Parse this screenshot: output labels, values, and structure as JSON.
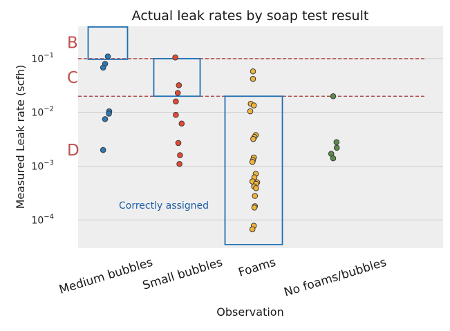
{
  "chart_data": {
    "type": "scatter",
    "title": "Actual leak rates by soap test result",
    "xlabel": "Observation",
    "ylabel": "Measured Leak rate (scfh)",
    "y_scale": "log",
    "ylim": [
      3e-05,
      0.4
    ],
    "grid": true,
    "categories": [
      "Medium bubbles",
      "Small bubbles",
      "Foams",
      "No foams/bubbles"
    ],
    "y_ticks": [
      {
        "value": 0.0001,
        "base": "10",
        "exp": "−4"
      },
      {
        "value": 0.001,
        "base": "10",
        "exp": "−3"
      },
      {
        "value": 0.01,
        "base": "10",
        "exp": "−2"
      },
      {
        "value": 0.1,
        "base": "10",
        "exp": "−1"
      }
    ],
    "thresholds": [
      {
        "value": 0.1,
        "color": "#a83232"
      },
      {
        "value": 0.02,
        "color": "#a83232"
      }
    ],
    "zone_labels": [
      {
        "text": "B",
        "value": 0.2
      },
      {
        "text": "C",
        "value": 0.045
      },
      {
        "text": "D",
        "value": 0.002
      }
    ],
    "zone_label_color": "#c0504d",
    "boxes": [
      {
        "category": "Medium bubbles",
        "y_low": 0.1,
        "y_high": 0.4
      },
      {
        "category": "Small bubbles",
        "y_low": 0.02,
        "y_high": 0.1
      },
      {
        "category": "Foams",
        "y_low": 3e-05,
        "y_high": 0.02
      }
    ],
    "box_color": "#1f6fb4",
    "annotation": {
      "text": "Correctly assigned",
      "color": "#1f5fa8"
    },
    "series": [
      {
        "category": "Medium bubbles",
        "color": "#2a7ab8",
        "points": [
          [
            0.15,
            0.11
          ],
          [
            0.05,
            0.08
          ],
          [
            -0.02,
            0.068
          ],
          [
            0.2,
            0.0105
          ],
          [
            0.19,
            0.0095
          ],
          [
            0.05,
            0.0075
          ],
          [
            -0.02,
            0.002
          ]
        ]
      },
      {
        "category": "Small bubbles",
        "color": "#e34a33",
        "points": [
          [
            -0.06,
            0.105
          ],
          [
            0.07,
            0.032
          ],
          [
            0.03,
            0.023
          ],
          [
            -0.04,
            0.016
          ],
          [
            -0.04,
            0.009
          ],
          [
            0.17,
            0.0062
          ],
          [
            0.05,
            0.0027
          ],
          [
            0.11,
            0.0016
          ],
          [
            0.09,
            0.0011
          ]
        ]
      },
      {
        "category": "Foams",
        "color": "#f0b43c",
        "points": [
          [
            0.05,
            0.058
          ],
          [
            0.05,
            0.042
          ],
          [
            -0.03,
            0.0145
          ],
          [
            0.08,
            0.0135
          ],
          [
            -0.05,
            0.0105
          ],
          [
            0.15,
            0.0038
          ],
          [
            0.1,
            0.0035
          ],
          [
            0.06,
            0.0032
          ],
          [
            0.08,
            0.00145
          ],
          [
            0.05,
            0.0013
          ],
          [
            0.03,
            0.0012
          ],
          [
            0.15,
            0.00072
          ],
          [
            0.1,
            0.00062
          ],
          [
            0.03,
            0.00052
          ],
          [
            0.2,
            0.0005
          ],
          [
            0.16,
            0.00047
          ],
          [
            0.09,
            0.00042
          ],
          [
            0.16,
            0.00039
          ],
          [
            0.12,
            0.00028
          ],
          [
            0.12,
            0.00018
          ],
          [
            0.1,
            0.00017
          ],
          [
            0.08,
            7.8e-05
          ],
          [
            0.03,
            6.7e-05
          ]
        ]
      },
      {
        "category": "No foams/bubbles",
        "color": "#5a8a4c",
        "points": [
          [
            0.05,
            0.02
          ],
          [
            0.17,
            0.0028
          ],
          [
            0.18,
            0.0022
          ],
          [
            -0.02,
            0.0017
          ],
          [
            0.05,
            0.0014
          ]
        ]
      }
    ]
  }
}
